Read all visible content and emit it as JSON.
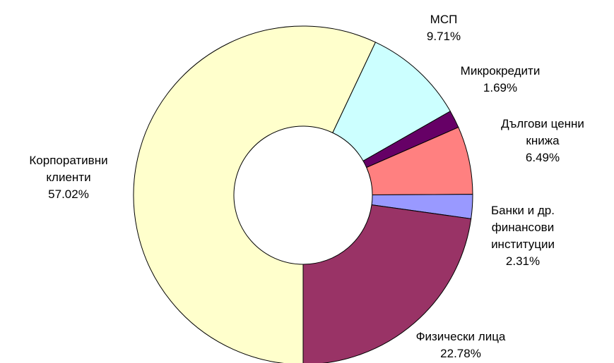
{
  "chart_data": {
    "type": "donut",
    "categories": [
      "Корпоративни клиенти",
      "МСП",
      "Микрокредити",
      "Дългови ценни книжа",
      "Банки и др. финансови институции",
      "Физически лица"
    ],
    "values": [
      57.02,
      9.71,
      1.69,
      6.49,
      2.31,
      22.78
    ],
    "value_labels": [
      "57.02%",
      "9.71%",
      "1.69%",
      "6.49%",
      "2.31%",
      "22.78%"
    ],
    "colors": [
      "#FFFFCC",
      "#CCFFFF",
      "#660066",
      "#FF8080",
      "#9999FF",
      "#993366"
    ]
  }
}
